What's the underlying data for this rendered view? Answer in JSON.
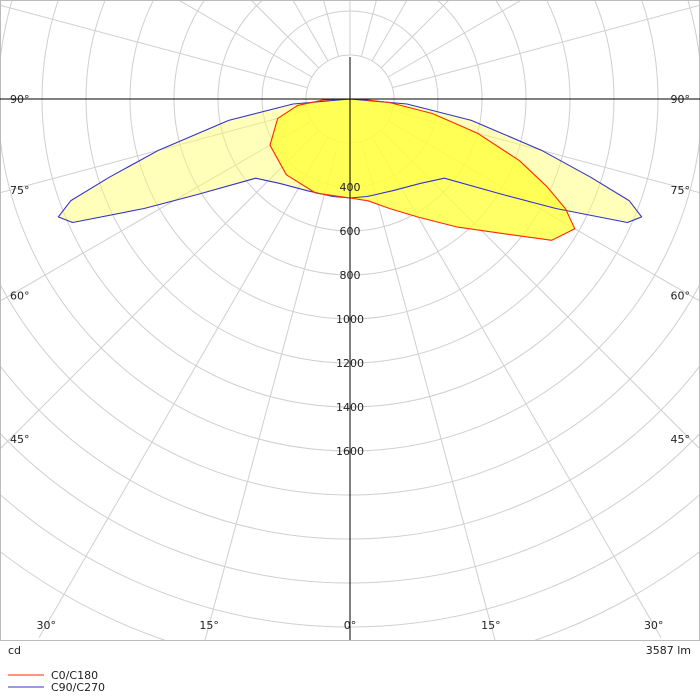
{
  "chart_data": {
    "type": "polar",
    "unit_label": "cd",
    "flux_label": "3587 lm",
    "radial_ticks": [
      "400",
      "600",
      "800",
      "1000",
      "1200",
      "1400",
      "1600"
    ],
    "radial_tick_values": [
      400,
      600,
      800,
      1000,
      1200,
      1400,
      1600
    ],
    "radial_max": 2600,
    "angle_labels": [
      {
        "text": "90°",
        "angle": 90,
        "side": "left"
      },
      {
        "text": "90°",
        "angle": 90,
        "side": "right"
      },
      {
        "text": "75°",
        "angle": 75,
        "side": "left"
      },
      {
        "text": "75°",
        "angle": 75,
        "side": "right"
      },
      {
        "text": "60°",
        "angle": 60,
        "side": "left"
      },
      {
        "text": "60°",
        "angle": 60,
        "side": "right"
      },
      {
        "text": "45°",
        "angle": 45,
        "side": "left"
      },
      {
        "text": "45°",
        "angle": 45,
        "side": "right"
      },
      {
        "text": "30°",
        "angle": 30,
        "side": "left"
      },
      {
        "text": "30°",
        "angle": 30,
        "side": "right"
      },
      {
        "text": "15°",
        "angle": 15,
        "side": "left"
      },
      {
        "text": "15°",
        "angle": 15,
        "side": "right"
      },
      {
        "text": "0°",
        "angle": 0,
        "side": "center"
      }
    ],
    "series": [
      {
        "name": "C0/C180",
        "color": "#ff2a00",
        "fill": "#ffff33",
        "points": [
          {
            "angle": -90,
            "value": 0
          },
          {
            "angle": -88,
            "value": 120
          },
          {
            "angle": -83,
            "value": 240
          },
          {
            "angle": -75,
            "value": 340
          },
          {
            "angle": -60,
            "value": 420
          },
          {
            "angle": -40,
            "value": 450
          },
          {
            "angle": -20,
            "value": 455
          },
          {
            "angle": 0,
            "value": 450
          },
          {
            "angle": 10,
            "value": 470
          },
          {
            "angle": 20,
            "value": 530
          },
          {
            "angle": 30,
            "value": 620
          },
          {
            "angle": 40,
            "value": 760
          },
          {
            "angle": 50,
            "value": 960
          },
          {
            "angle": 55,
            "value": 1120
          },
          {
            "angle": 60,
            "value": 1180
          },
          {
            "angle": 63,
            "value": 1100
          },
          {
            "angle": 66,
            "value": 980
          },
          {
            "angle": 70,
            "value": 820
          },
          {
            "angle": 75,
            "value": 600
          },
          {
            "angle": 80,
            "value": 380
          },
          {
            "angle": 85,
            "value": 180
          },
          {
            "angle": 88,
            "value": 60
          },
          {
            "angle": 90,
            "value": 0
          }
        ]
      },
      {
        "name": "C90/C270",
        "color": "#3333cc",
        "fill": "#ffff66",
        "points": [
          {
            "angle": -90,
            "value": 0
          },
          {
            "angle": -85,
            "value": 260
          },
          {
            "angle": -80,
            "value": 560
          },
          {
            "angle": -75,
            "value": 900
          },
          {
            "angle": -72,
            "value": 1150
          },
          {
            "angle": -70,
            "value": 1350
          },
          {
            "angle": -68,
            "value": 1430
          },
          {
            "angle": -66,
            "value": 1380
          },
          {
            "angle": -62,
            "value": 1060
          },
          {
            "angle": -58,
            "value": 820
          },
          {
            "angle": -50,
            "value": 560
          },
          {
            "angle": -40,
            "value": 500
          },
          {
            "angle": -25,
            "value": 460
          },
          {
            "angle": -10,
            "value": 450
          },
          {
            "angle": 0,
            "value": 450
          },
          {
            "angle": 10,
            "value": 450
          },
          {
            "angle": 25,
            "value": 460
          },
          {
            "angle": 40,
            "value": 500
          },
          {
            "angle": 50,
            "value": 560
          },
          {
            "angle": 58,
            "value": 820
          },
          {
            "angle": 62,
            "value": 1060
          },
          {
            "angle": 66,
            "value": 1380
          },
          {
            "angle": 68,
            "value": 1430
          },
          {
            "angle": 70,
            "value": 1350
          },
          {
            "angle": 72,
            "value": 1150
          },
          {
            "angle": 75,
            "value": 900
          },
          {
            "angle": 80,
            "value": 560
          },
          {
            "angle": 85,
            "value": 260
          },
          {
            "angle": 90,
            "value": 0
          }
        ]
      }
    ],
    "legend": [
      {
        "label": "C0/C180",
        "color": "#ff2a00"
      },
      {
        "label": "C90/C270",
        "color": "#3333cc"
      }
    ],
    "grid": true,
    "legend_position": "bottom-left"
  }
}
